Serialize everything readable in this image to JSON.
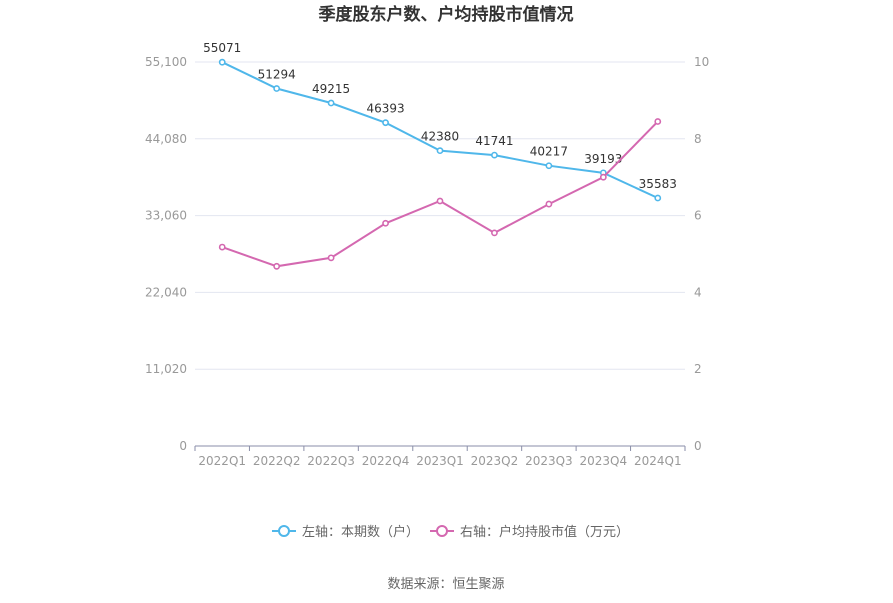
{
  "chart_data": {
    "type": "line",
    "title": "季度股东户数、户均持股市值情况",
    "categories": [
      "2022Q1",
      "2022Q2",
      "2022Q3",
      "2022Q4",
      "2023Q1",
      "2023Q2",
      "2023Q3",
      "2023Q4",
      "2024Q1"
    ],
    "y_left": {
      "ticks": [
        "0",
        "11,020",
        "22,040",
        "33,060",
        "44,080",
        "55,100"
      ],
      "range": [
        0,
        55100
      ]
    },
    "y_right": {
      "ticks": [
        "0",
        "2",
        "4",
        "6",
        "8",
        "10"
      ],
      "range": [
        0,
        10
      ]
    },
    "series": [
      {
        "name": "左轴：本期数（户）",
        "axis": "left",
        "color": "#4fb7ea",
        "values": [
          55071,
          51294,
          49215,
          46393,
          42380,
          41741,
          40217,
          39193,
          35583
        ],
        "labels": [
          "55071",
          "51294",
          "49215",
          "46393",
          "42380",
          "41741",
          "40217",
          "39193",
          "35583"
        ]
      },
      {
        "name": "右轴：户均持股市值（万元）",
        "axis": "right",
        "color": "#d468b0",
        "values": [
          5.18,
          4.68,
          4.9,
          5.8,
          6.38,
          5.55,
          6.3,
          7.0,
          8.45
        ]
      }
    ],
    "grid": true,
    "legend_position": "bottom"
  },
  "footer": {
    "source": "数据来源：恒生聚源"
  }
}
